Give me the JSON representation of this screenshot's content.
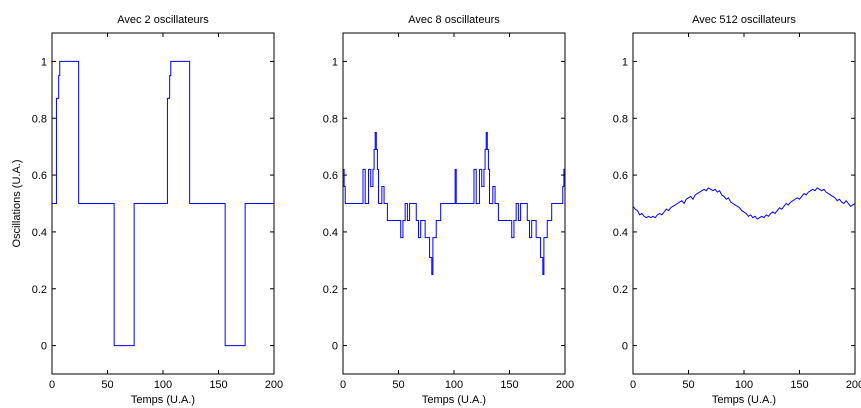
{
  "chart_data": [
    {
      "type": "line",
      "title": "Avec 2 oscillateurs",
      "xlabel": "Temps (U.A.)",
      "ylabel": "Oscillations (U.A.)",
      "xlim": [
        0,
        200
      ],
      "ylim": [
        -0.1,
        1.1
      ],
      "xticks": [
        0,
        50,
        100,
        150,
        200
      ],
      "yticks": [
        0,
        0.2,
        0.4,
        0.6,
        0.8,
        1
      ],
      "xtick_labels": [
        "0",
        "50",
        "100",
        "150",
        "200"
      ],
      "ytick_labels": [
        "0",
        "0.2",
        "0.4",
        "0.6",
        "0.8",
        "1"
      ],
      "grid": false,
      "line_color": "#0000ff",
      "series": [
        {
          "x": [
            0,
            4,
            4,
            6,
            6,
            7,
            7,
            24,
            24,
            56,
            56,
            74,
            74,
            104,
            104,
            106,
            106,
            107,
            107,
            124,
            124,
            156,
            156,
            174,
            174,
            200
          ],
          "y": [
            0.5,
            0.5,
            0.87,
            0.87,
            0.95,
            0.95,
            1,
            1,
            0.5,
            0.5,
            0,
            0,
            0.5,
            0.5,
            0.87,
            0.87,
            0.95,
            0.95,
            1,
            1,
            0.5,
            0.5,
            0,
            0,
            0.5,
            0.5
          ]
        }
      ]
    },
    {
      "type": "line",
      "title": "Avec 8 oscillateurs",
      "xlabel": "Temps (U.A.)",
      "ylabel": "",
      "xlim": [
        0,
        200
      ],
      "ylim": [
        -0.1,
        1.1
      ],
      "xticks": [
        0,
        50,
        100,
        150,
        200
      ],
      "yticks": [
        0,
        0.2,
        0.4,
        0.6,
        0.8,
        1
      ],
      "xtick_labels": [
        "0",
        "50",
        "100",
        "150",
        "200"
      ],
      "ytick_labels": [
        "0",
        "0.2",
        "0.4",
        "0.6",
        "0.8",
        "1"
      ],
      "grid": false,
      "line_color": "#0000ff",
      "series": [
        {
          "x": [
            0,
            1,
            1,
            2,
            2,
            18,
            18,
            20,
            20,
            23,
            23,
            25,
            25,
            27,
            27,
            28,
            28,
            29,
            29,
            30,
            30,
            31,
            31,
            32,
            32,
            35,
            35,
            37,
            37,
            40,
            40,
            52,
            52,
            54,
            54,
            56,
            56,
            58,
            58,
            60,
            60,
            66,
            66,
            68,
            68,
            70,
            70,
            74,
            74,
            78,
            78,
            80,
            80,
            81,
            81,
            84,
            84,
            88,
            88,
            101,
            101,
            102,
            102,
            118,
            118,
            120,
            120,
            123,
            123,
            125,
            125,
            127,
            127,
            128,
            128,
            129,
            129,
            130,
            130,
            131,
            131,
            132,
            132,
            135,
            135,
            137,
            137,
            140,
            140,
            152,
            152,
            154,
            154,
            156,
            156,
            158,
            158,
            160,
            160,
            166,
            166,
            168,
            168,
            170,
            170,
            174,
            174,
            178,
            178,
            180,
            180,
            181,
            181,
            184,
            184,
            188,
            188,
            198,
            198,
            199,
            199,
            200
          ],
          "y": [
            0.62,
            0.62,
            0.56,
            0.56,
            0.5,
            0.5,
            0.62,
            0.62,
            0.5,
            0.5,
            0.62,
            0.62,
            0.56,
            0.56,
            0.62,
            0.62,
            0.69,
            0.69,
            0.75,
            0.75,
            0.69,
            0.69,
            0.62,
            0.62,
            0.5,
            0.5,
            0.56,
            0.56,
            0.5,
            0.5,
            0.44,
            0.44,
            0.38,
            0.38,
            0.44,
            0.44,
            0.5,
            0.5,
            0.44,
            0.44,
            0.5,
            0.5,
            0.44,
            0.44,
            0.38,
            0.38,
            0.44,
            0.44,
            0.38,
            0.38,
            0.31,
            0.31,
            0.25,
            0.25,
            0.38,
            0.38,
            0.44,
            0.44,
            0.5,
            0.5,
            0.62,
            0.62,
            0.5,
            0.5,
            0.62,
            0.62,
            0.5,
            0.5,
            0.62,
            0.62,
            0.56,
            0.56,
            0.62,
            0.62,
            0.69,
            0.69,
            0.75,
            0.75,
            0.69,
            0.69,
            0.62,
            0.62,
            0.5,
            0.5,
            0.56,
            0.56,
            0.5,
            0.5,
            0.44,
            0.44,
            0.38,
            0.38,
            0.44,
            0.44,
            0.5,
            0.5,
            0.44,
            0.44,
            0.5,
            0.5,
            0.44,
            0.44,
            0.38,
            0.38,
            0.44,
            0.44,
            0.38,
            0.38,
            0.31,
            0.31,
            0.25,
            0.25,
            0.38,
            0.38,
            0.44,
            0.44,
            0.5,
            0.5,
            0.56,
            0.56,
            0.62,
            0.62
          ]
        }
      ]
    },
    {
      "type": "line",
      "title": "Avec 512 oscillateurs",
      "xlabel": "Temps (U.A.)",
      "ylabel": "",
      "xlim": [
        0,
        200
      ],
      "ylim": [
        -0.1,
        1.1
      ],
      "xticks": [
        0,
        50,
        100,
        150,
        200
      ],
      "yticks": [
        0,
        0.2,
        0.4,
        0.6,
        0.8,
        1
      ],
      "xtick_labels": [
        "0",
        "50",
        "100",
        "150",
        "200"
      ],
      "ytick_labels": [
        "0",
        "0.2",
        "0.4",
        "0.6",
        "0.8",
        "1"
      ],
      "grid": false,
      "line_color": "#0000ff",
      "series": [
        {
          "x": [
            0,
            2,
            4,
            6,
            8,
            10,
            12,
            14,
            16,
            18,
            20,
            22,
            24,
            26,
            28,
            30,
            32,
            34,
            36,
            38,
            40,
            42,
            44,
            46,
            48,
            50,
            52,
            54,
            56,
            58,
            60,
            62,
            64,
            66,
            68,
            70,
            72,
            74,
            76,
            78,
            80,
            82,
            84,
            86,
            88,
            90,
            92,
            94,
            96,
            98,
            100,
            102,
            104,
            106,
            108,
            110,
            112,
            114,
            116,
            118,
            120,
            122,
            124,
            126,
            128,
            130,
            132,
            134,
            136,
            138,
            140,
            142,
            144,
            146,
            148,
            150,
            152,
            154,
            156,
            158,
            160,
            162,
            164,
            166,
            168,
            170,
            172,
            174,
            176,
            178,
            180,
            182,
            184,
            186,
            188,
            190,
            192,
            194,
            196,
            198,
            200
          ],
          "y": [
            0.49,
            0.48,
            0.475,
            0.46,
            0.465,
            0.455,
            0.45,
            0.455,
            0.45,
            0.455,
            0.45,
            0.46,
            0.465,
            0.46,
            0.47,
            0.48,
            0.475,
            0.485,
            0.49,
            0.495,
            0.5,
            0.505,
            0.51,
            0.5,
            0.515,
            0.52,
            0.525,
            0.515,
            0.53,
            0.535,
            0.54,
            0.545,
            0.55,
            0.545,
            0.555,
            0.55,
            0.545,
            0.55,
            0.54,
            0.545,
            0.53,
            0.525,
            0.515,
            0.52,
            0.505,
            0.5,
            0.495,
            0.49,
            0.485,
            0.475,
            0.47,
            0.465,
            0.455,
            0.46,
            0.45,
            0.455,
            0.445,
            0.45,
            0.455,
            0.45,
            0.46,
            0.455,
            0.465,
            0.47,
            0.465,
            0.475,
            0.485,
            0.48,
            0.49,
            0.5,
            0.495,
            0.505,
            0.51,
            0.515,
            0.52,
            0.515,
            0.525,
            0.535,
            0.53,
            0.54,
            0.545,
            0.55,
            0.545,
            0.555,
            0.55,
            0.545,
            0.55,
            0.54,
            0.535,
            0.53,
            0.525,
            0.52,
            0.51,
            0.515,
            0.505,
            0.5,
            0.51,
            0.5,
            0.49,
            0.495,
            0.5
          ]
        }
      ]
    }
  ]
}
